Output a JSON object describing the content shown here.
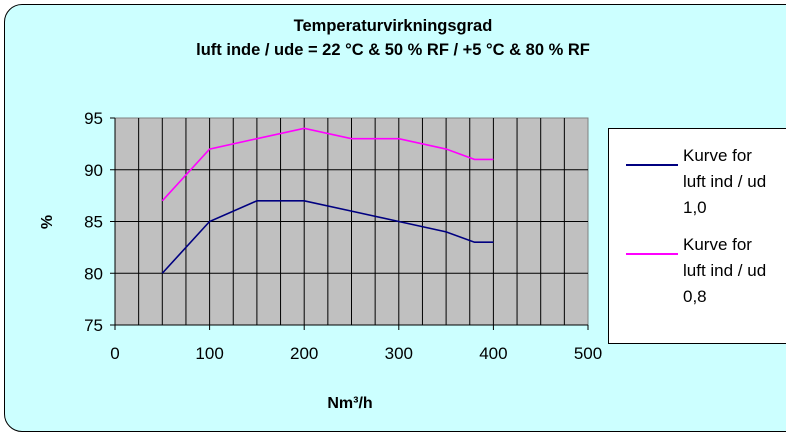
{
  "chart_data": {
    "type": "line",
    "title_line1": "Temperaturvirkningsgrad",
    "title_line2": "luft inde / ude = 22 °C & 50 % RF / +5 °C & 80 % RF",
    "xlabel": "Nm³/h",
    "ylabel": "%",
    "xlim": [
      0,
      500
    ],
    "ylim": [
      75,
      95
    ],
    "x_ticks": [
      "0",
      "100",
      "200",
      "300",
      "400",
      "500"
    ],
    "y_ticks": [
      "75",
      "80",
      "85",
      "90",
      "95"
    ],
    "grid": true,
    "legend_position": "right",
    "series": [
      {
        "name": "Kurve for\nluft ind / ud\n1,0",
        "color": "#000080",
        "x": [
          50,
          100,
          150,
          200,
          250,
          300,
          350,
          380,
          400
        ],
        "y": [
          80,
          85,
          87,
          87,
          86,
          85,
          84,
          83,
          83
        ]
      },
      {
        "name": "Kurve for\nluft ind / ud\n0,8",
        "color": "#ff00ff",
        "x": [
          50,
          100,
          150,
          200,
          250,
          300,
          350,
          380,
          400
        ],
        "y": [
          87,
          92,
          93,
          94,
          93,
          93,
          92,
          91,
          91
        ]
      }
    ]
  }
}
